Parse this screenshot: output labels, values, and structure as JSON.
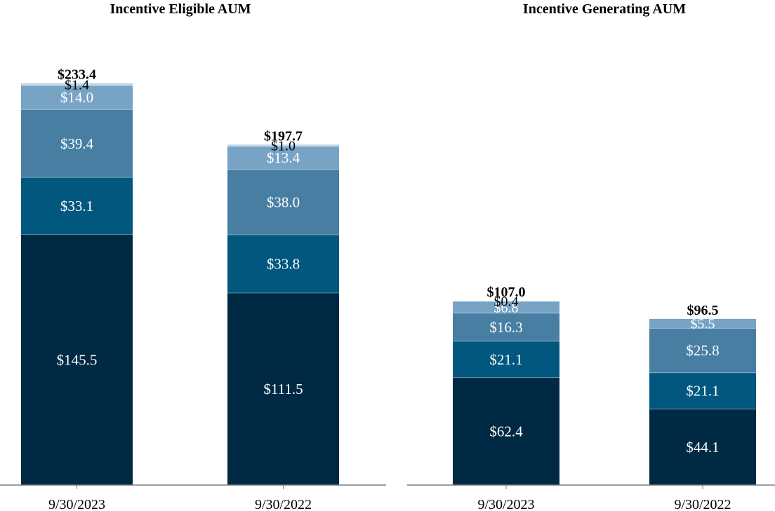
{
  "chart_data": [
    {
      "type": "bar",
      "stacked": true,
      "title": "Incentive Eligible AUM",
      "categories": [
        "9/30/2023",
        "9/30/2022"
      ],
      "series": [
        {
          "name": "segment-1",
          "color": "#002944",
          "values": [
            145.5,
            111.5
          ],
          "labels": [
            "$145.5",
            "$111.5"
          ]
        },
        {
          "name": "segment-2",
          "color": "#02577f",
          "values": [
            33.1,
            33.8
          ],
          "labels": [
            "$33.1",
            "$33.8"
          ]
        },
        {
          "name": "segment-3",
          "color": "#477ea2",
          "values": [
            39.4,
            38.0
          ],
          "labels": [
            "$39.4",
            "$38.0"
          ]
        },
        {
          "name": "segment-4",
          "color": "#77a3c5",
          "values": [
            14.0,
            13.4
          ],
          "labels": [
            "$14.0",
            "$13.4"
          ]
        },
        {
          "name": "segment-5",
          "color": "#c2d6e7",
          "values": [
            1.4,
            1.0
          ],
          "labels": [
            "$1.4",
            "$1.0"
          ]
        }
      ],
      "totals": [
        233.4,
        197.7
      ],
      "total_labels": [
        "$233.4",
        "$197.7"
      ],
      "ylim": [
        0,
        233.4
      ]
    },
    {
      "type": "bar",
      "stacked": true,
      "title": "Incentive Generating AUM",
      "categories": [
        "9/30/2023",
        "9/30/2022"
      ],
      "series": [
        {
          "name": "segment-1",
          "color": "#002944",
          "values": [
            62.4,
            44.1
          ],
          "labels": [
            "$62.4",
            "$44.1"
          ]
        },
        {
          "name": "segment-2",
          "color": "#02577f",
          "values": [
            21.1,
            21.1
          ],
          "labels": [
            "$21.1",
            "$21.1"
          ]
        },
        {
          "name": "segment-3",
          "color": "#477ea2",
          "values": [
            16.3,
            25.8
          ],
          "labels": [
            "$16.3",
            "$25.8"
          ]
        },
        {
          "name": "segment-4",
          "color": "#77a3c5",
          "values": [
            6.8,
            5.5
          ],
          "labels": [
            "$6.8",
            "$5.5"
          ]
        },
        {
          "name": "segment-5",
          "color": "#c2d6e7",
          "values": [
            0.4,
            null
          ],
          "labels": [
            "$0.4",
            null
          ]
        }
      ],
      "totals": [
        107.0,
        96.5
      ],
      "total_labels": [
        "$107.0",
        "$96.5"
      ],
      "ylim": [
        0,
        233.4
      ]
    }
  ]
}
